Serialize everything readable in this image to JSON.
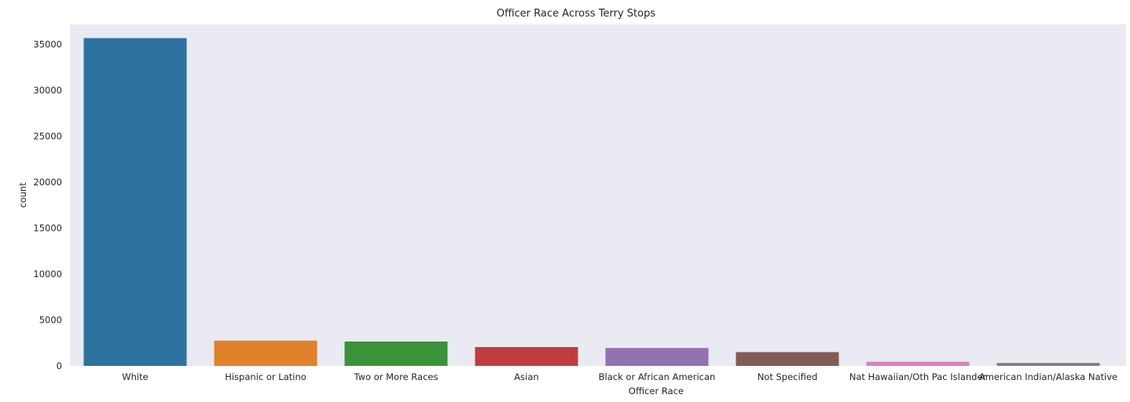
{
  "chart_data": {
    "type": "bar",
    "title": "Officer Race Across Terry Stops",
    "xlabel": "Officer Race",
    "ylabel": "count",
    "categories": [
      "White",
      "Hispanic or Latino",
      "Two or More Races",
      "Asian",
      "Black or African American",
      "Not Specified",
      "Nat Hawaiian/Oth Pac Islander",
      "American Indian/Alaska Native"
    ],
    "values": [
      35700,
      2750,
      2650,
      2050,
      1950,
      1500,
      450,
      320
    ],
    "colors": [
      "#2e73a0",
      "#e1812c",
      "#3a923a",
      "#c03d3e",
      "#9372b2",
      "#845b53",
      "#d684bd",
      "#7f7f7f"
    ],
    "ylim": [
      0,
      37200
    ],
    "yticks": [
      0,
      5000,
      10000,
      15000,
      20000,
      25000,
      30000,
      35000
    ],
    "grid": false,
    "background": "#eaeaf2"
  }
}
